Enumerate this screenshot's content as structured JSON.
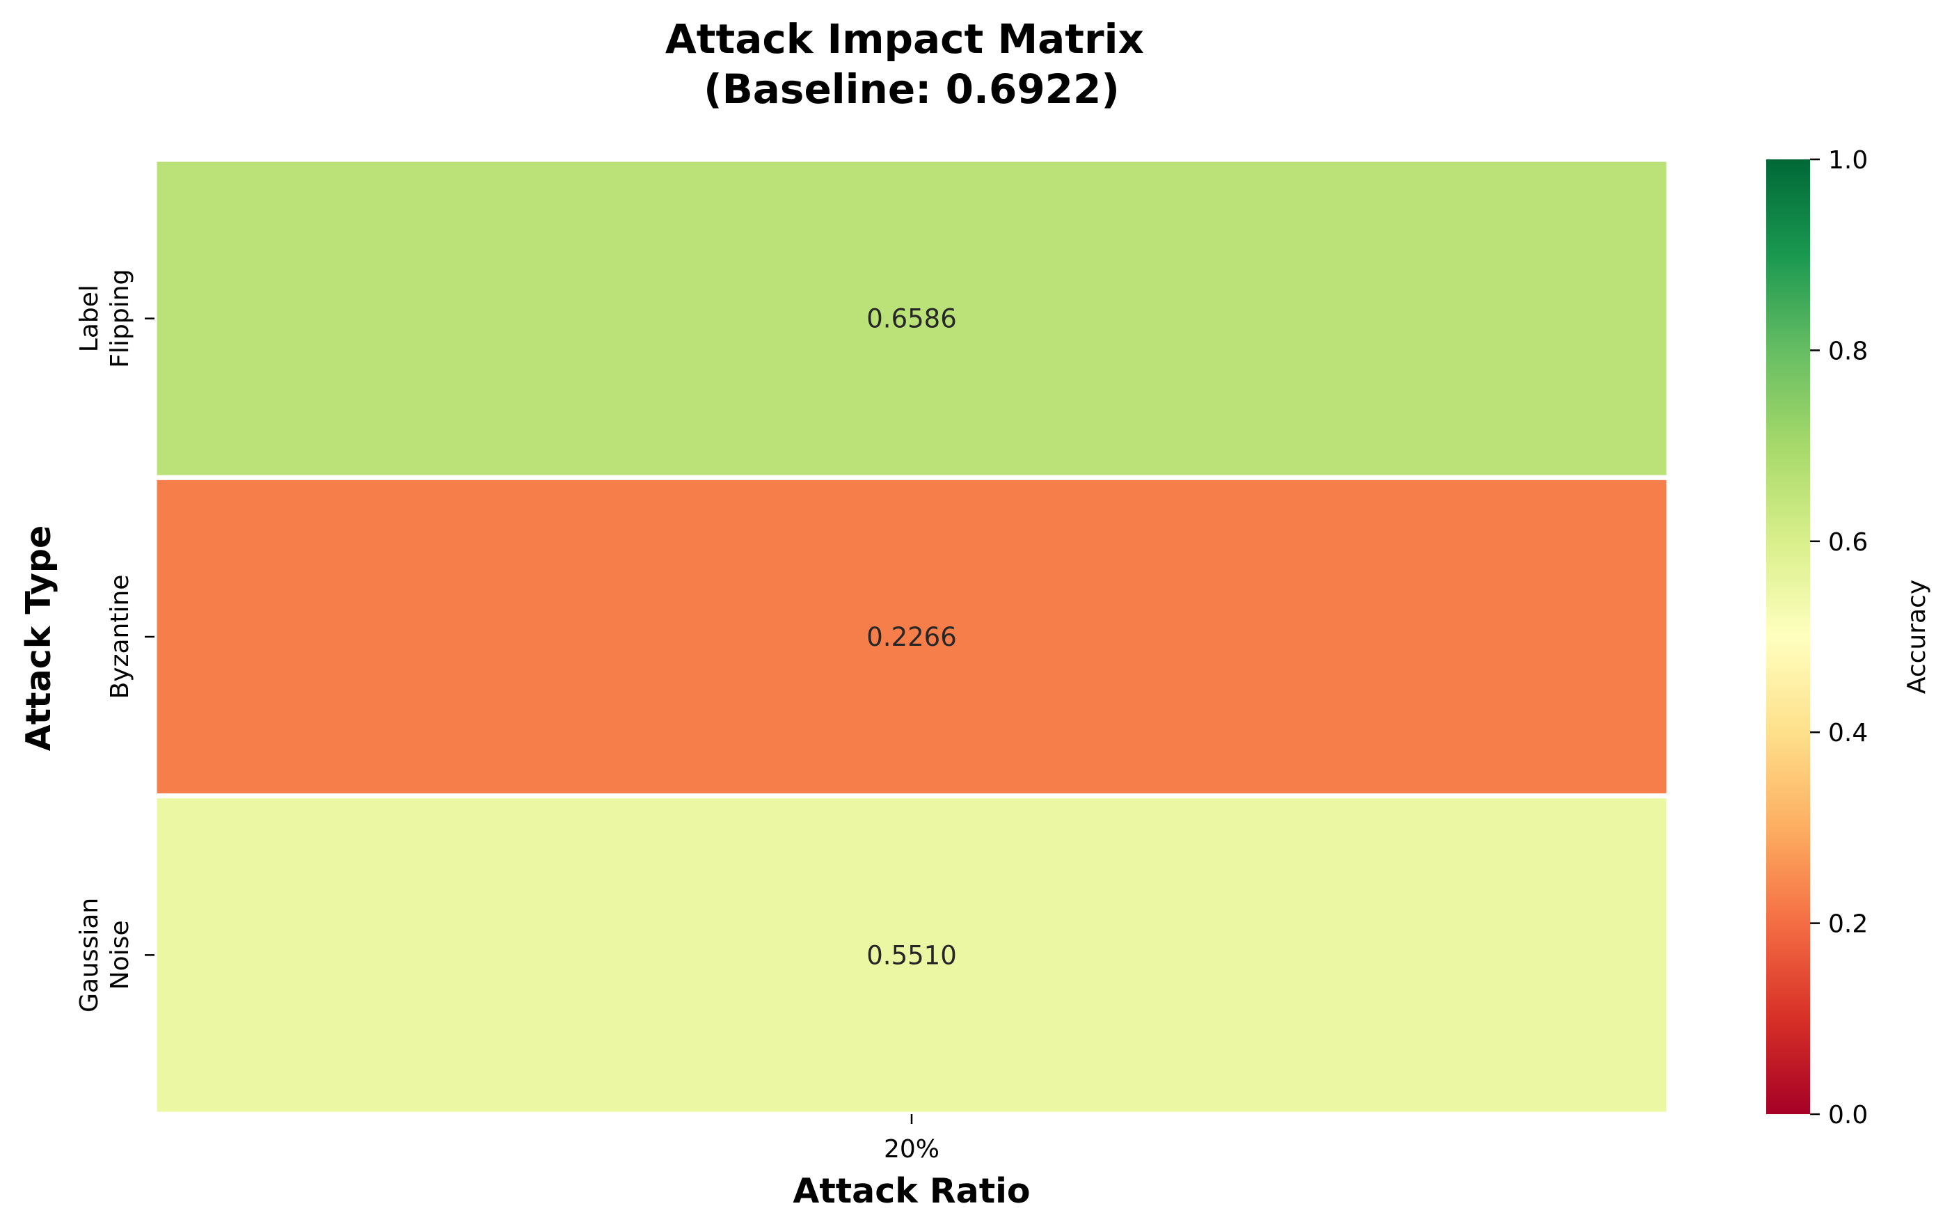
{
  "chart_data": {
    "type": "heatmap",
    "title": "Attack Impact Matrix\n(Baseline: 0.6922)",
    "xlabel": "Attack Ratio",
    "ylabel": "Attack Type",
    "x_categories": [
      "20%"
    ],
    "y_categories": [
      "Label\nFlipping",
      "Byzantine",
      "Gaussian\nNoise"
    ],
    "values": [
      [
        0.6586
      ],
      [
        0.2266
      ],
      [
        0.551
      ]
    ],
    "cell_labels": [
      [
        "0.6586"
      ],
      [
        "0.2266"
      ],
      [
        "0.5510"
      ]
    ],
    "colormap": "RdYlGn",
    "vmin": 0.0,
    "vmax": 1.0,
    "colorbar": {
      "label": "Accuracy",
      "ticks": [
        0.0,
        0.2,
        0.4,
        0.6,
        0.8,
        1.0
      ],
      "tick_labels": [
        "0.0",
        "0.2",
        "0.4",
        "0.6",
        "0.8",
        "1.0"
      ]
    },
    "grid": false,
    "cell_separator_color": "#ffffff"
  }
}
